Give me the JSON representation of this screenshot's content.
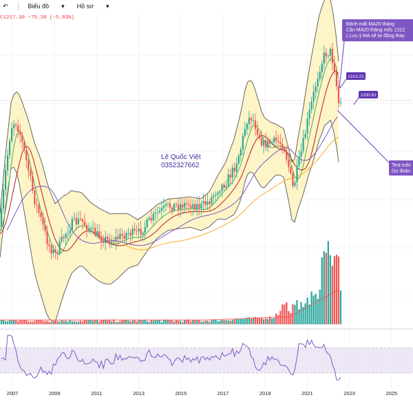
{
  "toolbar": {
    "undo_icon": "undo-arrow-icon",
    "chart_menu_label": "Biểu đồ",
    "profile_menu_label": "Hồ sơ"
  },
  "ohlc_readout": "C1217.30 −75.38 (−5.83%)",
  "annotations": {
    "author_name": "Lê Quốc Việt",
    "author_phone": "0352327662",
    "note_top": [
      "Đánh mất MA20 tháng",
      "Cần MA20 tháng mốc 1312",
      "( Lưu ý MA sẽ tự động thay"
    ],
    "note_bottom": [
      "Test mốc",
      "Dự đoán"
    ]
  },
  "price_tags": [
    "1313.21",
    "1200.61"
  ],
  "colors": {
    "up": "#26a69a",
    "down": "#ef5350",
    "band_fill": "#fdf3c4",
    "band_line": "#555555",
    "ma_fast": "#4caf50",
    "ma_mid": "#b71c1c",
    "ma_slow": "#7e57c2",
    "ma_long": "#ffa726",
    "callout": "#7e57c2",
    "rsi_line": "#7e57c2",
    "rsi_band": "#ede7f6"
  },
  "chart_data": {
    "type": "candlestick",
    "title": "",
    "x_tick_labels": [
      "2007",
      "2009",
      "2011",
      "2013",
      "2015",
      "2017",
      "2019",
      "2021",
      "2023",
      "2025"
    ],
    "last_close": 1217.3,
    "change": -75.38,
    "change_pct": -5.83,
    "horizontal_levels": [
      1313.21,
      1200.61
    ],
    "indicators": [
      "Bollinger Bands",
      "MA fast",
      "MA mid",
      "MA slow",
      "MA long",
      "Volume",
      "RSI"
    ],
    "grid": true
  }
}
